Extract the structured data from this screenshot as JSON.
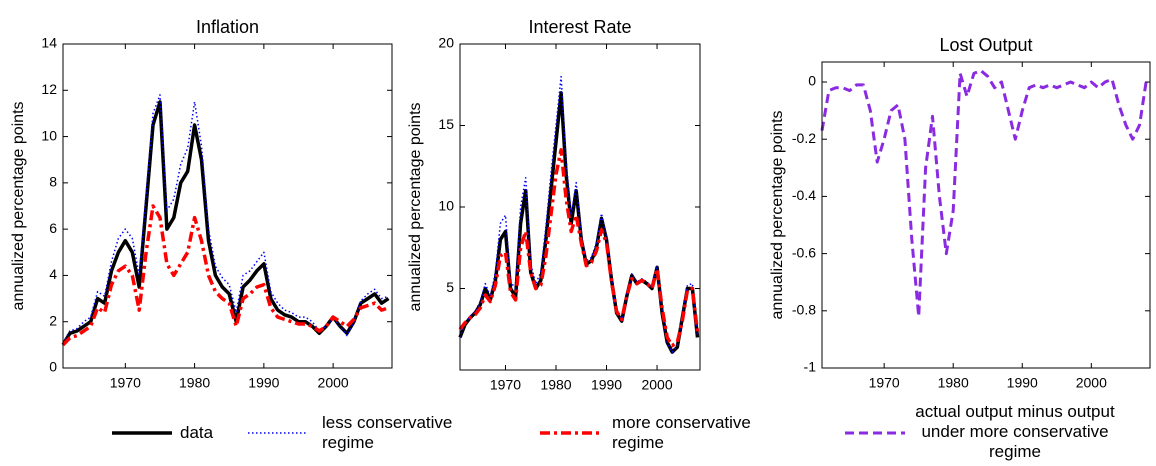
{
  "chart_data": [
    {
      "type": "line",
      "title": "Inflation",
      "y_label": "annualized percentage points",
      "x": [
        1961,
        1962,
        1963,
        1964,
        1965,
        1966,
        1967,
        1968,
        1969,
        1970,
        1971,
        1972,
        1973,
        1974,
        1975,
        1976,
        1977,
        1978,
        1979,
        1980,
        1981,
        1982,
        1983,
        1984,
        1985,
        1986,
        1987,
        1988,
        1989,
        1990,
        1991,
        1992,
        1993,
        1994,
        1995,
        1996,
        1997,
        1998,
        1999,
        2000,
        2001,
        2002,
        2003,
        2004,
        2005,
        2006,
        2007,
        2008
      ],
      "xlim": [
        1961,
        2008.5
      ],
      "xticks": [
        1970,
        1980,
        1990,
        2000
      ],
      "ylim": [
        0,
        14
      ],
      "yticks": [
        0,
        2,
        4,
        6,
        8,
        10,
        12,
        14
      ],
      "series": [
        {
          "name": "data",
          "color": "#000000",
          "line_style": "solid",
          "values": [
            1.0,
            1.5,
            1.6,
            1.8,
            2.0,
            3.0,
            2.8,
            4.2,
            5.0,
            5.5,
            5.0,
            3.5,
            7.0,
            10.5,
            11.5,
            6.0,
            6.5,
            8.0,
            8.5,
            10.5,
            9.0,
            5.5,
            4.0,
            3.5,
            3.2,
            2.0,
            3.5,
            3.8,
            4.2,
            4.5,
            3.0,
            2.5,
            2.3,
            2.2,
            2.0,
            2.0,
            1.8,
            1.5,
            1.8,
            2.2,
            1.8,
            1.5,
            2.0,
            2.8,
            3.0,
            3.2,
            2.8,
            3.0
          ]
        },
        {
          "name": "less conservative regime",
          "color": "#0000ff",
          "line_style": "dotted",
          "values": [
            1.1,
            1.6,
            1.7,
            2.0,
            2.2,
            3.3,
            3.1,
            4.6,
            5.6,
            6.0,
            5.6,
            4.0,
            7.5,
            11.0,
            11.8,
            6.8,
            7.3,
            8.8,
            9.5,
            11.5,
            9.6,
            6.0,
            4.4,
            3.9,
            3.6,
            2.4,
            4.0,
            4.2,
            4.6,
            5.0,
            3.3,
            2.8,
            2.5,
            2.4,
            2.2,
            2.2,
            2.0,
            1.6,
            1.8,
            2.2,
            1.8,
            1.4,
            2.0,
            2.9,
            3.2,
            3.4,
            3.0,
            3.1
          ]
        },
        {
          "name": "more conservative regime",
          "color": "#ff0000",
          "line_style": "dashdot",
          "values": [
            1.0,
            1.3,
            1.4,
            1.6,
            1.8,
            2.6,
            2.4,
            3.6,
            4.2,
            4.4,
            4.0,
            2.5,
            5.0,
            7.0,
            6.5,
            4.5,
            4.0,
            4.5,
            5.0,
            6.5,
            5.5,
            4.0,
            3.3,
            3.0,
            2.8,
            1.8,
            3.0,
            3.2,
            3.5,
            3.6,
            2.6,
            2.2,
            2.1,
            2.0,
            1.9,
            1.9,
            1.8,
            1.6,
            1.8,
            2.2,
            2.0,
            1.8,
            2.1,
            2.6,
            2.7,
            2.8,
            2.5,
            2.6
          ]
        }
      ]
    },
    {
      "type": "line",
      "title": "Interest Rate",
      "y_label": "annualized percentage points",
      "x": [
        1961,
        1962,
        1963,
        1964,
        1965,
        1966,
        1967,
        1968,
        1969,
        1970,
        1971,
        1972,
        1973,
        1974,
        1975,
        1976,
        1977,
        1978,
        1979,
        1980,
        1981,
        1982,
        1983,
        1984,
        1985,
        1986,
        1987,
        1988,
        1989,
        1990,
        1991,
        1992,
        1993,
        1994,
        1995,
        1996,
        1997,
        1998,
        1999,
        2000,
        2001,
        2002,
        2003,
        2004,
        2005,
        2006,
        2007,
        2008
      ],
      "xlim": [
        1961,
        2008.5
      ],
      "xticks": [
        1970,
        1980,
        1990,
        2000
      ],
      "ylim": [
        0,
        20
      ],
      "yticks": [
        5,
        10,
        15,
        20
      ],
      "series": [
        {
          "color": "#000000",
          "line_style": "solid",
          "values": [
            2.0,
            2.8,
            3.2,
            3.5,
            4.0,
            5.0,
            4.3,
            5.5,
            8.0,
            8.5,
            5.0,
            4.5,
            9.0,
            11.0,
            6.0,
            5.0,
            5.5,
            8.0,
            11.0,
            14.0,
            17.0,
            12.0,
            9.0,
            11.0,
            8.0,
            6.5,
            6.7,
            7.5,
            9.3,
            8.0,
            5.5,
            3.5,
            3.0,
            4.5,
            5.8,
            5.3,
            5.5,
            5.3,
            5.0,
            6.3,
            3.5,
            1.7,
            1.1,
            1.4,
            3.2,
            5.0,
            5.0,
            2.0
          ]
        },
        {
          "color": "#0000ff",
          "line_style": "dotted",
          "values": [
            2.0,
            2.9,
            3.3,
            3.6,
            4.2,
            5.3,
            4.5,
            6.0,
            9.0,
            9.5,
            5.4,
            5.0,
            10.0,
            11.8,
            6.5,
            5.3,
            6.0,
            8.8,
            12.0,
            15.0,
            18.0,
            12.8,
            9.5,
            11.5,
            8.3,
            6.7,
            6.9,
            7.8,
            9.6,
            8.2,
            5.6,
            3.6,
            3.0,
            4.6,
            5.9,
            5.4,
            5.6,
            5.4,
            5.1,
            6.4,
            3.6,
            1.7,
            1.1,
            1.5,
            3.3,
            5.2,
            5.3,
            2.1
          ]
        },
        {
          "color": "#ff0000",
          "line_style": "dashdot",
          "values": [
            2.5,
            2.9,
            3.2,
            3.4,
            3.8,
            4.6,
            4.2,
            5.2,
            7.0,
            7.2,
            4.8,
            4.3,
            7.5,
            8.5,
            6.0,
            5.0,
            5.2,
            7.0,
            9.5,
            12.0,
            13.5,
            10.5,
            8.5,
            9.5,
            7.8,
            6.4,
            6.6,
            7.3,
            8.6,
            7.8,
            5.4,
            3.6,
            3.1,
            4.5,
            5.6,
            5.3,
            5.5,
            5.3,
            5.0,
            6.2,
            3.8,
            2.0,
            1.5,
            1.7,
            3.0,
            4.9,
            5.0,
            2.3
          ]
        }
      ]
    },
    {
      "type": "line",
      "title": "Lost Output",
      "y_label": "annualized percentage points",
      "x": [
        1961,
        1962,
        1963,
        1964,
        1965,
        1966,
        1967,
        1968,
        1969,
        1970,
        1971,
        1972,
        1973,
        1974,
        1975,
        1976,
        1977,
        1978,
        1979,
        1980,
        1981,
        1982,
        1983,
        1984,
        1985,
        1986,
        1987,
        1988,
        1989,
        1990,
        1991,
        1992,
        1993,
        1994,
        1995,
        1996,
        1997,
        1998,
        1999,
        2000,
        2001,
        2002,
        2003,
        2004,
        2005,
        2006,
        2007,
        2008
      ],
      "xlim": [
        1961,
        2008.5
      ],
      "xticks": [
        1970,
        1980,
        1990,
        2000
      ],
      "ylim": [
        -1,
        0.07
      ],
      "yticks": [
        -1,
        -0.8,
        -0.6,
        -0.4,
        -0.2,
        0
      ],
      "series": [
        {
          "name": "actual output minus output under more conservative regime",
          "color": "#8a2be2",
          "line_style": "dashed",
          "values": [
            -0.17,
            -0.03,
            -0.02,
            -0.02,
            -0.03,
            -0.01,
            -0.01,
            -0.1,
            -0.28,
            -0.2,
            -0.1,
            -0.08,
            -0.2,
            -0.55,
            -0.82,
            -0.3,
            -0.12,
            -0.4,
            -0.6,
            -0.45,
            0.03,
            -0.05,
            0.03,
            0.04,
            0.02,
            -0.02,
            0.0,
            -0.1,
            -0.2,
            -0.1,
            -0.02,
            -0.01,
            -0.02,
            -0.01,
            -0.02,
            -0.01,
            0.0,
            -0.01,
            -0.02,
            0.0,
            -0.02,
            0.0,
            0.01,
            -0.08,
            -0.15,
            -0.2,
            -0.15,
            0.01
          ]
        }
      ]
    }
  ]
}
